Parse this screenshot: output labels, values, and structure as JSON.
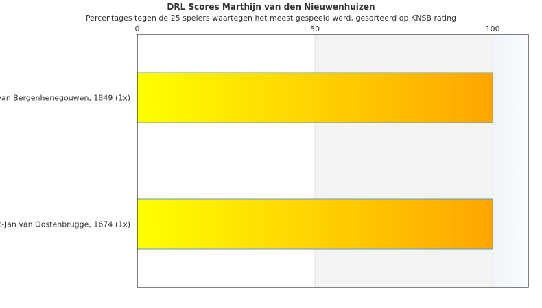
{
  "chart_data": {
    "type": "bar",
    "orientation": "horizontal",
    "title": "DRL Scores Marthijn van den Nieuwenhuizen",
    "subtitle": "Percentages tegen de 25 spelers waartegen het meest gespeeld werd, gesorteerd op KNSB rating",
    "categories": [
      "van Bergenhenegouwen, 1849 (1x)",
      "t-Jan van Oostenbrugge, 1674 (1x)"
    ],
    "values": [
      100,
      100
    ],
    "xlim": [
      0,
      110
    ],
    "ticks": [
      "0",
      "50",
      "100"
    ],
    "tick_values": [
      0,
      50,
      100
    ],
    "bands": [
      {
        "from": 50,
        "to": 100,
        "color": "#f3f3f3"
      },
      {
        "from": 100,
        "to": 110,
        "color": "#f4f8fc"
      }
    ],
    "bar_gradient": [
      "#ffff00",
      "#ffa500"
    ],
    "bar_border": "#5b9bd5",
    "grid": false,
    "legend": "none"
  }
}
